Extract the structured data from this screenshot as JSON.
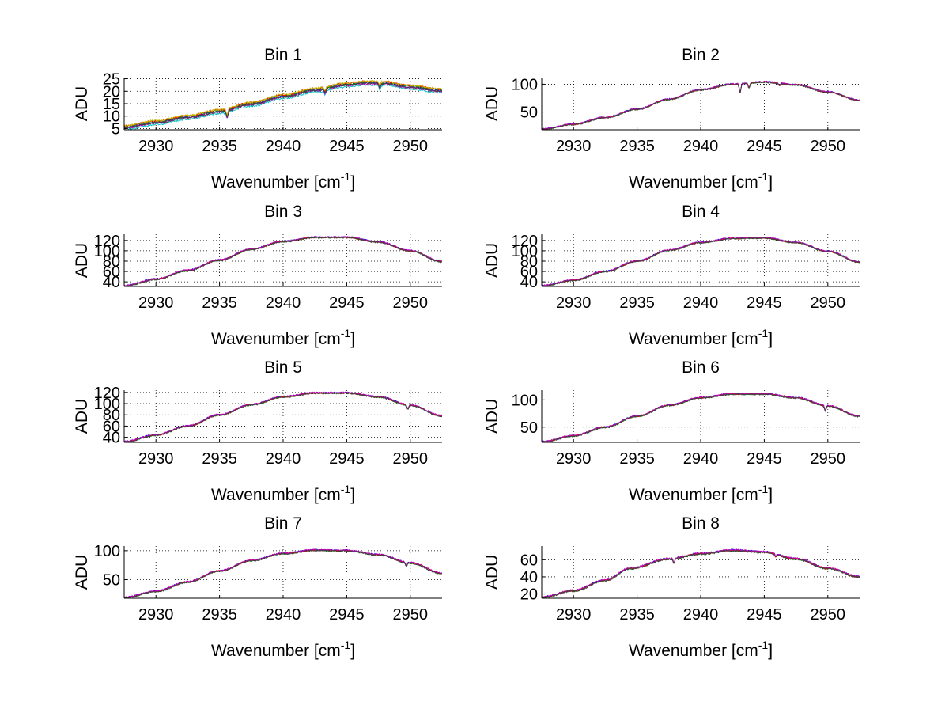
{
  "chart_data": [
    {
      "type": "line",
      "title": "Bin 1",
      "xlabel": "Wavenumber [cm",
      "xlabel_sup": "-1",
      "xlabel_suffix": "]",
      "ylabel": "ADU",
      "xlim": [
        2927.5,
        2952.5
      ],
      "ylim": [
        4.5,
        25.5
      ],
      "xticks": [
        2930,
        2935,
        2940,
        2945,
        2950
      ],
      "yticks": [
        5,
        10,
        15,
        20,
        25
      ],
      "grid": true,
      "profile": [
        [
          2927.5,
          5.2
        ],
        [
          2930,
          7.2
        ],
        [
          2932.5,
          9.3
        ],
        [
          2935,
          11.6
        ],
        [
          2937.5,
          14.6
        ],
        [
          2940,
          17.6
        ],
        [
          2942.5,
          20.2
        ],
        [
          2945,
          22.3
        ],
        [
          2946.5,
          23.1
        ],
        [
          2948,
          22.9
        ],
        [
          2950,
          21.4
        ],
        [
          2952.5,
          19.9
        ]
      ],
      "dips": [
        [
          2935.6,
          -2.5
        ],
        [
          2943.3,
          -1.6
        ],
        [
          2947.6,
          -1.8
        ]
      ],
      "noise": 0.35,
      "series": [
        {
          "color": "#0000ff",
          "offset": 0.3
        },
        {
          "color": "#008000",
          "offset": 0.6
        },
        {
          "color": "#ff0000",
          "offset": 0.9
        },
        {
          "color": "#00bfbf",
          "offset": -0.6
        },
        {
          "color": "#bf00bf",
          "offset": 0.0
        },
        {
          "color": "#bfbf00",
          "offset": 1.0
        },
        {
          "color": "#404040",
          "offset": 0.1
        }
      ]
    },
    {
      "type": "line",
      "title": "Bin 2",
      "xlabel": "Wavenumber [cm",
      "xlabel_sup": "-1",
      "xlabel_suffix": "]",
      "ylabel": "ADU",
      "xlim": [
        2927.5,
        2952.5
      ],
      "ylim": [
        18,
        112
      ],
      "xticks": [
        2930,
        2935,
        2940,
        2945,
        2950
      ],
      "yticks": [
        50,
        100
      ],
      "grid": true,
      "profile": [
        [
          2927.5,
          19
        ],
        [
          2930,
          28
        ],
        [
          2932.5,
          40
        ],
        [
          2935,
          55
        ],
        [
          2937.5,
          73
        ],
        [
          2940,
          90
        ],
        [
          2942.5,
          100
        ],
        [
          2945,
          104
        ],
        [
          2947.5,
          99
        ],
        [
          2950,
          86
        ],
        [
          2952.5,
          71
        ]
      ],
      "dips": [
        [
          2943.1,
          -15
        ],
        [
          2943.8,
          -9
        ],
        [
          2946.2,
          -4
        ]
      ],
      "noise": 1.3,
      "series": [
        {
          "color": "#0000ff",
          "offset": 0.4
        },
        {
          "color": "#008000",
          "offset": -0.3
        },
        {
          "color": "#ff0000",
          "offset": 0.0
        },
        {
          "color": "#bf00bf",
          "offset": 0.6
        },
        {
          "color": "#404040",
          "offset": -0.5
        }
      ]
    },
    {
      "type": "line",
      "title": "Bin 3",
      "xlabel": "Wavenumber [cm",
      "xlabel_sup": "-1",
      "xlabel_suffix": "]",
      "ylabel": "ADU",
      "xlim": [
        2927.5,
        2952.5
      ],
      "ylim": [
        31,
        132
      ],
      "xticks": [
        2930,
        2935,
        2940,
        2945,
        2950
      ],
      "yticks": [
        40,
        60,
        80,
        100,
        120
      ],
      "ytick_labels": [
        "40",
        "60",
        "80",
        "100",
        "120"
      ],
      "grid": true,
      "profile": [
        [
          2927.5,
          32
        ],
        [
          2930,
          45
        ],
        [
          2932.5,
          62
        ],
        [
          2935,
          82
        ],
        [
          2937.5,
          103
        ],
        [
          2940,
          118
        ],
        [
          2942.5,
          126
        ],
        [
          2945,
          126
        ],
        [
          2947.5,
          117
        ],
        [
          2950,
          100
        ],
        [
          2952.5,
          79
        ]
      ],
      "dips": [],
      "noise": 1.4,
      "series": [
        {
          "color": "#0000ff",
          "offset": 0.5
        },
        {
          "color": "#008000",
          "offset": -0.4
        },
        {
          "color": "#ff0000",
          "offset": 0.0
        },
        {
          "color": "#bf00bf",
          "offset": 0.7
        },
        {
          "color": "#404040",
          "offset": -0.6
        }
      ]
    },
    {
      "type": "line",
      "title": "Bin 4",
      "xlabel": "Wavenumber [cm",
      "xlabel_sup": "-1",
      "xlabel_suffix": "]",
      "ylabel": "ADU",
      "xlim": [
        2927.5,
        2952.5
      ],
      "ylim": [
        31,
        132
      ],
      "xticks": [
        2930,
        2935,
        2940,
        2945,
        2950
      ],
      "yticks": [
        40,
        60,
        80,
        100,
        120
      ],
      "ytick_labels": [
        "40",
        "60",
        "80",
        "100",
        "120"
      ],
      "grid": true,
      "profile": [
        [
          2927.5,
          32
        ],
        [
          2930,
          43
        ],
        [
          2932.5,
          60
        ],
        [
          2935,
          80
        ],
        [
          2937.5,
          101
        ],
        [
          2940,
          116
        ],
        [
          2942.5,
          124
        ],
        [
          2945,
          125
        ],
        [
          2947.5,
          116
        ],
        [
          2950,
          99
        ],
        [
          2952.5,
          78
        ]
      ],
      "dips": [],
      "noise": 1.3,
      "series": [
        {
          "color": "#0000ff",
          "offset": 0.5
        },
        {
          "color": "#008000",
          "offset": -0.4
        },
        {
          "color": "#ff0000",
          "offset": 0.0
        },
        {
          "color": "#bf00bf",
          "offset": 0.7
        },
        {
          "color": "#404040",
          "offset": -0.6
        }
      ]
    },
    {
      "type": "line",
      "title": "Bin 5",
      "xlabel": "Wavenumber [cm",
      "xlabel_sup": "-1",
      "xlabel_suffix": "]",
      "ylabel": "ADU",
      "xlim": [
        2927.5,
        2952.5
      ],
      "ylim": [
        31,
        124
      ],
      "xticks": [
        2930,
        2935,
        2940,
        2945,
        2950
      ],
      "yticks": [
        40,
        60,
        80,
        100,
        120
      ],
      "ytick_labels": [
        "40",
        "60",
        "80",
        "100",
        "120"
      ],
      "grid": true,
      "profile": [
        [
          2927.5,
          32
        ],
        [
          2930,
          44
        ],
        [
          2932.5,
          60
        ],
        [
          2935,
          80
        ],
        [
          2937.5,
          98
        ],
        [
          2940,
          112
        ],
        [
          2942.5,
          119
        ],
        [
          2945,
          119
        ],
        [
          2947.5,
          112
        ],
        [
          2950,
          97
        ],
        [
          2952.5,
          78
        ]
      ],
      "dips": [
        [
          2949.8,
          -7
        ]
      ],
      "noise": 1.3,
      "series": [
        {
          "color": "#0000ff",
          "offset": 0.5
        },
        {
          "color": "#008000",
          "offset": -0.4
        },
        {
          "color": "#ff0000",
          "offset": 0.0
        },
        {
          "color": "#bf00bf",
          "offset": 0.7
        },
        {
          "color": "#404040",
          "offset": -0.6
        }
      ]
    },
    {
      "type": "line",
      "title": "Bin 6",
      "xlabel": "Wavenumber [cm",
      "xlabel_sup": "-1",
      "xlabel_suffix": "]",
      "ylabel": "ADU",
      "xlim": [
        2927.5,
        2952.5
      ],
      "ylim": [
        22,
        118
      ],
      "xticks": [
        2930,
        2935,
        2940,
        2945,
        2950
      ],
      "yticks": [
        50,
        100
      ],
      "grid": true,
      "profile": [
        [
          2927.5,
          23
        ],
        [
          2930,
          34
        ],
        [
          2932.5,
          50
        ],
        [
          2935,
          70
        ],
        [
          2937.5,
          90
        ],
        [
          2940,
          104
        ],
        [
          2942.5,
          111
        ],
        [
          2945,
          111
        ],
        [
          2947.5,
          104
        ],
        [
          2950,
          89
        ],
        [
          2952.5,
          70
        ]
      ],
      "dips": [
        [
          2949.8,
          -9
        ]
      ],
      "noise": 1.3,
      "series": [
        {
          "color": "#0000ff",
          "offset": 0.5
        },
        {
          "color": "#008000",
          "offset": -0.4
        },
        {
          "color": "#ff0000",
          "offset": 0.0
        },
        {
          "color": "#bf00bf",
          "offset": 0.7
        },
        {
          "color": "#404040",
          "offset": -0.6
        }
      ]
    },
    {
      "type": "line",
      "title": "Bin 7",
      "xlabel": "Wavenumber [cm",
      "xlabel_sup": "-1",
      "xlabel_suffix": "]",
      "ylabel": "ADU",
      "xlim": [
        2927.5,
        2952.5
      ],
      "ylim": [
        18,
        108
      ],
      "xticks": [
        2930,
        2935,
        2940,
        2945,
        2950
      ],
      "yticks": [
        50,
        100
      ],
      "grid": true,
      "profile": [
        [
          2927.5,
          19
        ],
        [
          2930,
          30
        ],
        [
          2932.5,
          46
        ],
        [
          2935,
          65
        ],
        [
          2937.5,
          83
        ],
        [
          2940,
          95
        ],
        [
          2942.5,
          101
        ],
        [
          2945,
          100
        ],
        [
          2947.5,
          93
        ],
        [
          2950,
          79
        ],
        [
          2952.5,
          61
        ]
      ],
      "dips": [
        [
          2949.7,
          -6
        ]
      ],
      "noise": 1.2,
      "series": [
        {
          "color": "#0000ff",
          "offset": 0.5
        },
        {
          "color": "#008000",
          "offset": -0.4
        },
        {
          "color": "#ff0000",
          "offset": 0.0
        },
        {
          "color": "#bf00bf",
          "offset": 0.7
        },
        {
          "color": "#404040",
          "offset": -0.6
        }
      ]
    },
    {
      "type": "line",
      "title": "Bin 8",
      "xlabel": "Wavenumber [cm",
      "xlabel_sup": "-1",
      "xlabel_suffix": "]",
      "ylabel": "ADU",
      "xlim": [
        2927.5,
        2952.5
      ],
      "ylim": [
        15,
        76
      ],
      "xticks": [
        2930,
        2935,
        2940,
        2945,
        2950
      ],
      "yticks": [
        20,
        40,
        60
      ],
      "grid": true,
      "profile": [
        [
          2927.5,
          16
        ],
        [
          2930,
          24
        ],
        [
          2932.5,
          36
        ],
        [
          2934.5,
          50
        ],
        [
          2937.5,
          61
        ],
        [
          2940,
          67
        ],
        [
          2942.5,
          71
        ],
        [
          2945,
          69
        ],
        [
          2947.5,
          61
        ],
        [
          2950,
          50
        ],
        [
          2952.5,
          40
        ]
      ],
      "dips": [
        [
          2937.9,
          -5
        ],
        [
          2945.9,
          -3
        ]
      ],
      "noise": 1.0,
      "series": [
        {
          "color": "#0000ff",
          "offset": 0.4
        },
        {
          "color": "#008000",
          "offset": -0.3
        },
        {
          "color": "#ff0000",
          "offset": 0.0
        },
        {
          "color": "#bf00bf",
          "offset": 0.5
        },
        {
          "color": "#404040",
          "offset": -0.5
        }
      ]
    }
  ]
}
